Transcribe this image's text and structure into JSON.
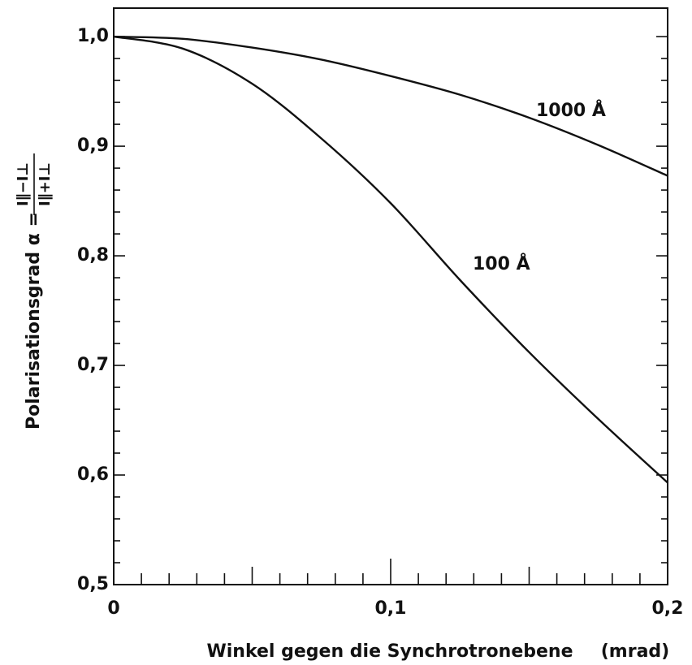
{
  "chart_data": {
    "type": "line",
    "x": [
      0,
      0.025,
      0.05,
      0.075,
      0.1,
      0.125,
      0.15,
      0.175,
      0.2
    ],
    "series": [
      {
        "name": "1000 Å",
        "color": "#111111",
        "values": [
          1.0,
          0.998,
          0.99,
          0.979,
          0.964,
          0.947,
          0.926,
          0.901,
          0.873
        ]
      },
      {
        "name": "100 Å",
        "color": "#111111",
        "values": [
          1.0,
          0.989,
          0.957,
          0.907,
          0.848,
          0.778,
          0.712,
          0.651,
          0.593
        ]
      }
    ],
    "xlim": [
      0,
      0.2
    ],
    "xticks": [
      0,
      {
        "value": 0.1,
        "label": "0,1"
      },
      {
        "value": 0.2,
        "label": "0,2"
      }
    ],
    "ylim": [
      0.5,
      1.026
    ],
    "yticks": [
      {
        "value": 0.5,
        "label": "0,5"
      },
      {
        "value": 0.6,
        "label": "0,6"
      },
      {
        "value": 0.7,
        "label": "0,7"
      },
      {
        "value": 0.8,
        "label": "0,8"
      },
      {
        "value": 0.9,
        "label": "0,9"
      },
      {
        "value": 1.0,
        "label": "1,0"
      }
    ],
    "xlabel": "Winkel gegen die Synchrotronebene",
    "xunit": "(mrad)",
    "ylabel": "Polarisationsgrad α =",
    "ylabel_fraction": {
      "numerator": "I∥−I⊥",
      "denominator": "I∥+I⊥"
    },
    "grid": false
  }
}
